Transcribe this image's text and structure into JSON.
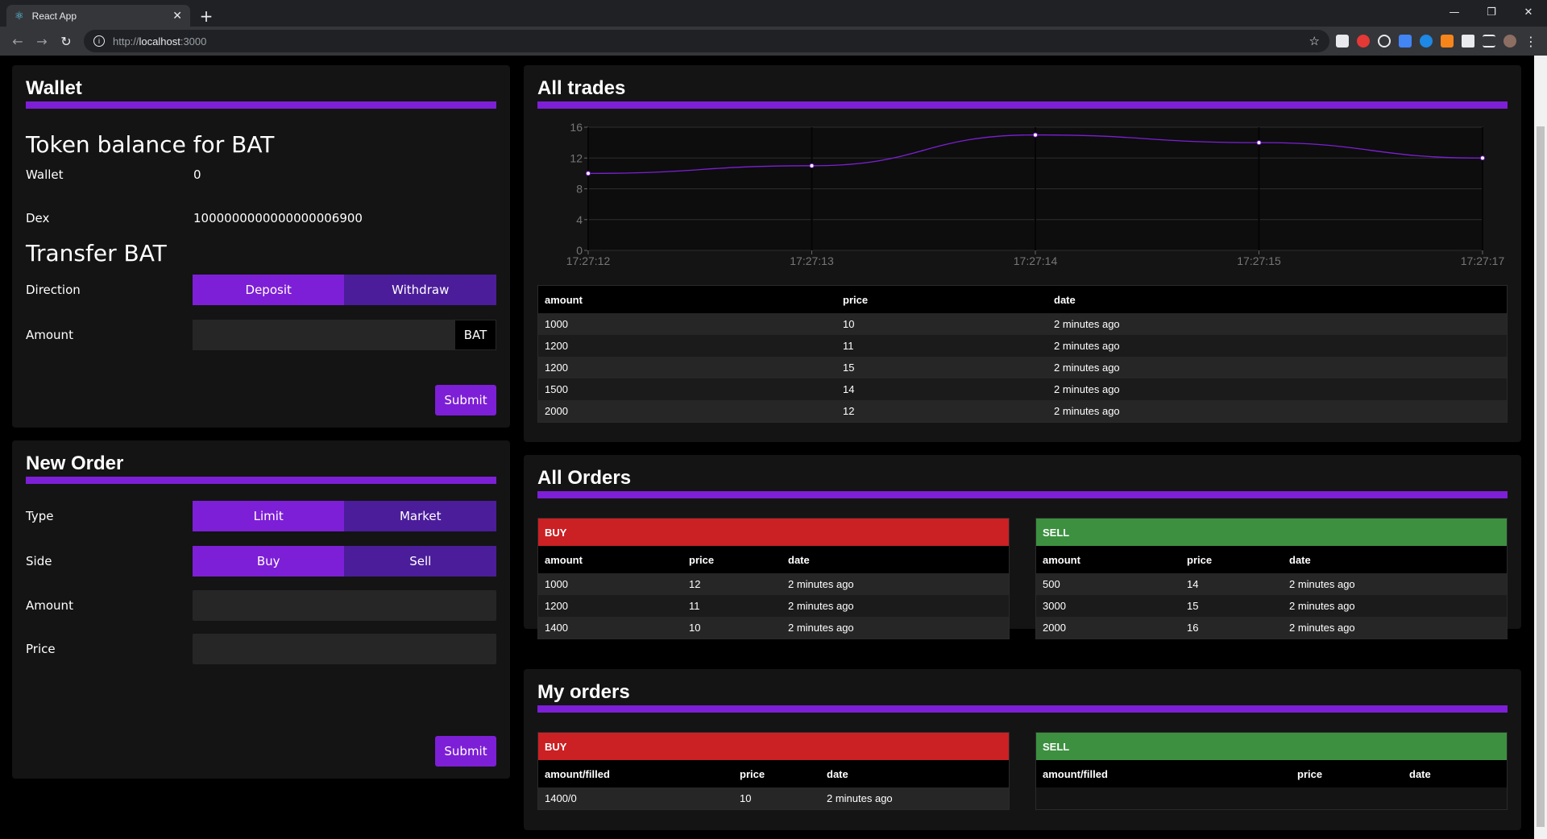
{
  "browser": {
    "tab_title": "React App",
    "url_proto": "http://",
    "url_host": "localhost",
    "url_port": ":3000"
  },
  "wallet": {
    "title": "Wallet",
    "balance_heading": "Token balance for BAT",
    "wallet_label": "Wallet",
    "wallet_value": "0",
    "dex_label": "Dex",
    "dex_value": "1000000000000000006900",
    "transfer_heading": "Transfer BAT",
    "direction_label": "Direction",
    "deposit_label": "Deposit",
    "withdraw_label": "Withdraw",
    "amount_label": "Amount",
    "amount_addon": "BAT",
    "submit_label": "Submit"
  },
  "new_order": {
    "title": "New Order",
    "type_label": "Type",
    "limit_label": "Limit",
    "market_label": "Market",
    "side_label": "Side",
    "buy_label": "Buy",
    "sell_label": "Sell",
    "amount_label": "Amount",
    "price_label": "Price",
    "submit_label": "Submit"
  },
  "all_trades": {
    "title": "All trades",
    "headers": [
      "amount",
      "price",
      "date"
    ],
    "rows": [
      [
        "1000",
        "10",
        "2 minutes ago"
      ],
      [
        "1200",
        "11",
        "2 minutes ago"
      ],
      [
        "1200",
        "15",
        "2 minutes ago"
      ],
      [
        "1500",
        "14",
        "2 minutes ago"
      ],
      [
        "2000",
        "12",
        "2 minutes ago"
      ]
    ]
  },
  "chart_data": {
    "type": "line",
    "x": [
      "17:27:12",
      "17:27:13",
      "17:27:14",
      "17:27:15",
      "17:27:17"
    ],
    "values": [
      10,
      11,
      15,
      14,
      12
    ],
    "ylim": [
      0,
      16
    ],
    "yticks": [
      "0",
      "4",
      "8",
      "12",
      "16"
    ],
    "grid": true,
    "line_color": "#7d1fd6"
  },
  "all_orders": {
    "title": "All Orders",
    "buy": {
      "label": "BUY",
      "headers": [
        "amount",
        "price",
        "date"
      ],
      "rows": [
        [
          "1000",
          "12",
          "2 minutes ago"
        ],
        [
          "1200",
          "11",
          "2 minutes ago"
        ],
        [
          "1400",
          "10",
          "2 minutes ago"
        ]
      ]
    },
    "sell": {
      "label": "SELL",
      "headers": [
        "amount",
        "price",
        "date"
      ],
      "rows": [
        [
          "500",
          "14",
          "2 minutes ago"
        ],
        [
          "3000",
          "15",
          "2 minutes ago"
        ],
        [
          "2000",
          "16",
          "2 minutes ago"
        ]
      ]
    }
  },
  "my_orders": {
    "title": "My orders",
    "buy": {
      "label": "BUY",
      "headers": [
        "amount/filled",
        "price",
        "date"
      ],
      "rows": [
        [
          "1400/0",
          "10",
          "2 minutes ago"
        ]
      ]
    },
    "sell": {
      "label": "SELL",
      "headers": [
        "amount/filled",
        "price",
        "date"
      ],
      "rows": []
    }
  },
  "colors": {
    "accent": "#7d1fd6",
    "buy": "#cb2024",
    "sell": "#3d9040"
  }
}
